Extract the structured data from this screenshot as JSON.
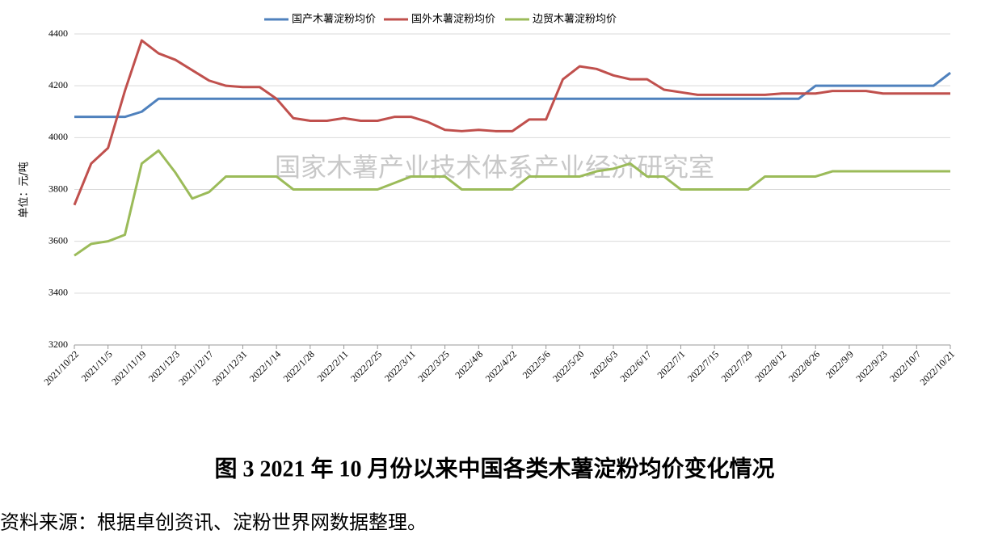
{
  "chart_data": {
    "type": "line",
    "legend_position": "top",
    "y_label": "单位：元/吨",
    "watermark": "国家木薯产业技术体系产业经济研究室",
    "caption": "图 3   2021 年 10 月份以来中国各类木薯淀粉均价变化情况",
    "source": "资料来源：根据卓创资讯、淀粉世界网数据整理。",
    "categories": [
      "2021/10/22",
      null,
      "2021/11/5",
      null,
      "2021/11/19",
      null,
      "2021/12/3",
      null,
      "2021/12/17",
      null,
      "2021/12/31",
      null,
      "2022/1/14",
      null,
      "2022/1/28",
      null,
      "2022/2/11",
      null,
      "2022/2/25",
      null,
      "2022/3/11",
      null,
      "2022/3/25",
      null,
      "2022/4/8",
      null,
      "2022/4/22",
      null,
      "2022/5/6",
      null,
      "2022/5/20",
      null,
      "2022/6/3",
      null,
      "2022/6/17",
      null,
      "2022/7/1",
      null,
      "2022/7/15",
      null,
      "2022/7/29",
      null,
      "2022/8/12",
      null,
      "2022/8/26",
      null,
      "2022/9/9",
      null,
      "2022/9/23",
      null,
      "2022/10/7",
      null,
      "2022/10/21"
    ],
    "series": [
      {
        "name": "国产木薯淀粉均价",
        "color": "#4f81bd",
        "values": [
          4080,
          4080,
          4080,
          4080,
          4100,
          4150,
          4150,
          4150,
          4150,
          4150,
          4150,
          4150,
          4150,
          4150,
          4150,
          4150,
          4150,
          4150,
          4150,
          4150,
          4150,
          4150,
          4150,
          4150,
          4150,
          4150,
          4150,
          4150,
          4150,
          4150,
          4150,
          4150,
          4150,
          4150,
          4150,
          4150,
          4150,
          4150,
          4150,
          4150,
          4150,
          4150,
          4150,
          4150,
          4200,
          4200,
          4200,
          4200,
          4200,
          4200,
          4200,
          4200,
          4250
        ]
      },
      {
        "name": "国外木薯淀粉均价",
        "color": "#c0504d",
        "values": [
          3740,
          3900,
          3960,
          4180,
          4375,
          4325,
          4300,
          4260,
          4220,
          4200,
          4195,
          4195,
          4150,
          4075,
          4065,
          4065,
          4075,
          4065,
          4065,
          4080,
          4080,
          4060,
          4030,
          4025,
          4030,
          4025,
          4025,
          4070,
          4070,
          4225,
          4275,
          4265,
          4240,
          4225,
          4225,
          4185,
          4175,
          4165,
          4165,
          4165,
          4165,
          4165,
          4170,
          4170,
          4170,
          4180,
          4180,
          4180,
          4170,
          4170,
          4170,
          4170,
          4170
        ]
      },
      {
        "name": "边贸木薯淀粉均价",
        "color": "#9bbb59",
        "values": [
          3545,
          3590,
          3600,
          3625,
          3900,
          3950,
          3865,
          3765,
          3790,
          3850,
          3850,
          3850,
          3850,
          3800,
          3800,
          3800,
          3800,
          3800,
          3800,
          3825,
          3850,
          3850,
          3850,
          3800,
          3800,
          3800,
          3800,
          3850,
          3850,
          3850,
          3850,
          3870,
          3880,
          3900,
          3850,
          3850,
          3800,
          3800,
          3800,
          3800,
          3800,
          3850,
          3850,
          3850,
          3850,
          3870,
          3870,
          3870,
          3870,
          3870,
          3870,
          3870,
          3870
        ]
      }
    ],
    "ylim": [
      3200,
      4400
    ],
    "yticks": [
      3200,
      3400,
      3600,
      3800,
      4000,
      4200,
      4400
    ],
    "grid": true
  }
}
